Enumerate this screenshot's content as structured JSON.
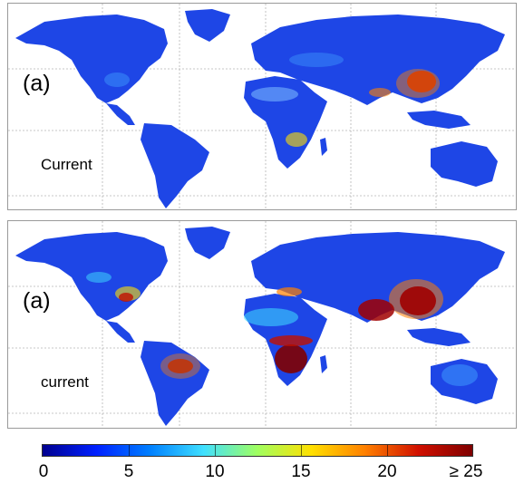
{
  "panels": [
    {
      "letter": "(a)",
      "name": "Current"
    },
    {
      "letter": "(a)",
      "name": "current"
    }
  ],
  "colorbar": {
    "ticks": [
      "0",
      "5",
      "10",
      "15",
      "20",
      "≥ 25"
    ],
    "colors": [
      "#00008f",
      "#0020ff",
      "#0080ff",
      "#40e0ff",
      "#a0ff60",
      "#ffe000",
      "#ff8000",
      "#d01000",
      "#7f0000"
    ]
  }
}
